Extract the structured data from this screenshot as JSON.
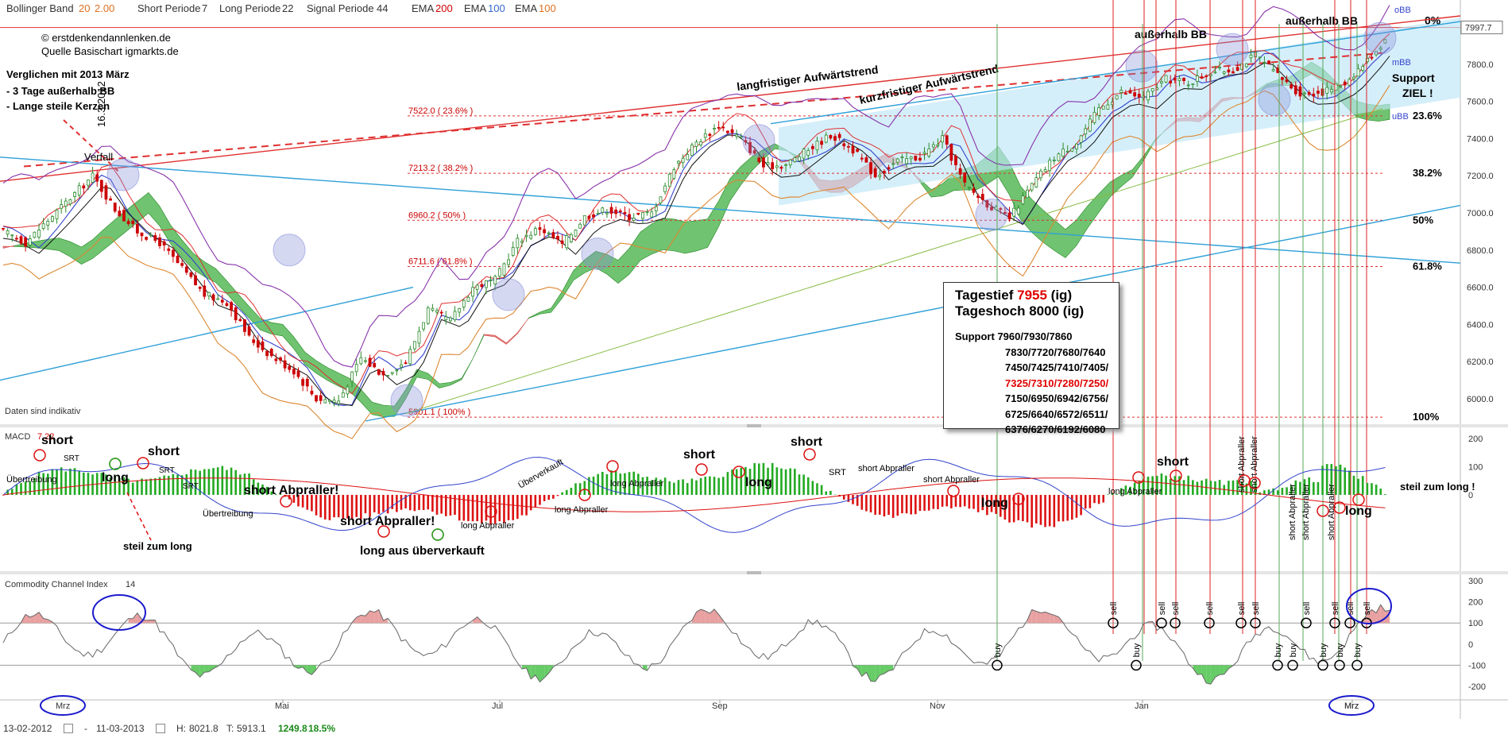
{
  "header": {
    "bb_label": "Bollinger Band",
    "bb_p1": "20",
    "bb_p2": "2.00",
    "short_label": "Short Periode",
    "short_val": "7",
    "long_label": "Long Periode",
    "long_val": "22",
    "signal_label": "Signal Periode",
    "signal_val": "44",
    "ema1_label": "EMA",
    "ema1_val": "200",
    "ema2_label": "EMA",
    "ema2_val": "100",
    "ema3_label": "EMA",
    "ema3_val": "100"
  },
  "copyright": [
    "© erstdenkendannlenken.de",
    "Quelle Basischart igmarkts.de"
  ],
  "notes": [
    "Verglichen mit 2013 März",
    "- 3 Tage außerhalb BB",
    "- Lange steile Kerzen"
  ],
  "vertical_date": "16.3.2012",
  "verfall": "Verfall",
  "daten": "Daten sind indikativ",
  "colors": {
    "up": "#2a8a2a",
    "down": "#cc0000",
    "accent": "#e01010",
    "blue": "#3b5bdb",
    "cloud_green": "#33aa33",
    "cloud_red": "#ee5555"
  },
  "info_box": {
    "tagestief_label": "Tagestief",
    "tagestief_val": "7955",
    "tagestief_suffix": "(ig)",
    "tageshoch": "Tageshoch 8000 (ig)",
    "support_label": "Support",
    "support_lines": [
      "7960/7930/7860",
      "7830/7720/7680/7640",
      "7450/7425/7410/7405/",
      "7325/7310/7280/7250/",
      "7150/6950/6942/6756/",
      "6725/6640/6572/6511/",
      "6376/6270/6192/6080"
    ]
  },
  "footer": {
    "from": "13-02-2012",
    "to": "11-03-2013",
    "h_label": "H:",
    "h_val": "8021.8",
    "t_label": "T:",
    "t_val": "5913.1",
    "diff": "1249.8",
    "pct": "18.5%"
  },
  "chart_data": [
    {
      "type": "candlestick",
      "title": "",
      "x_ticks": [
        "Mai",
        "Jul",
        "Sep",
        "Nov",
        "Jan",
        "Mrz"
      ],
      "y_ticks": [
        6000,
        6200,
        6400,
        6600,
        6800,
        7000,
        7200,
        7400,
        7600,
        7800,
        7997.7
      ],
      "ylim": [
        5880,
        8060
      ],
      "last_price": "7997.7",
      "fib_levels": [
        {
          "label": "7522.0 ( 23.6% )",
          "value": 7522.0,
          "right_label": "23.6%"
        },
        {
          "label": "7213.2 ( 38.2% )",
          "value": 7213.2,
          "right_label": "38.2%"
        },
        {
          "label": "6960.2 ( 50% )",
          "value": 6960.2,
          "right_label": "50%"
        },
        {
          "label": "6711.6 ( 61.8% )",
          "value": 6711.6,
          "right_label": "61.8%"
        },
        {
          "label": "5901.1 ( 100% )",
          "value": 5901.1,
          "right_label": "100%"
        }
      ],
      "top_pct": "0%",
      "annotations": {
        "long_trend": "langfristiger Aufwärtstrend",
        "short_trend": "kurzfristiger Aufwärtstrend",
        "ausserhalb1": "außerhalb BB",
        "ausserhalb2": "außerhalb BB",
        "support": "Support",
        "ziel": "ZIEL !",
        "obb": "oBB",
        "mbb": "mBB",
        "ubb": "uBB"
      },
      "close_path": [
        [
          0,
          6900
        ],
        [
          10,
          6840
        ],
        [
          20,
          6960
        ],
        [
          30,
          7080
        ],
        [
          40,
          7200
        ],
        [
          50,
          7020
        ],
        [
          60,
          6900
        ],
        [
          70,
          6840
        ],
        [
          80,
          6700
        ],
        [
          90,
          6560
        ],
        [
          100,
          6520
        ],
        [
          110,
          6330
        ],
        [
          120,
          6230
        ],
        [
          130,
          6150
        ],
        [
          140,
          6000
        ],
        [
          150,
          5990
        ],
        [
          160,
          6220
        ],
        [
          170,
          6130
        ],
        [
          180,
          6200
        ],
        [
          190,
          6480
        ],
        [
          200,
          6420
        ],
        [
          210,
          6600
        ],
        [
          220,
          6640
        ],
        [
          230,
          6850
        ],
        [
          240,
          6920
        ],
        [
          250,
          6830
        ],
        [
          260,
          6980
        ],
        [
          270,
          7020
        ],
        [
          280,
          6980
        ],
        [
          290,
          7000
        ],
        [
          300,
          7250
        ],
        [
          310,
          7380
        ],
        [
          320,
          7470
        ],
        [
          330,
          7400
        ],
        [
          340,
          7250
        ],
        [
          350,
          7260
        ],
        [
          360,
          7340
        ],
        [
          370,
          7420
        ],
        [
          380,
          7340
        ],
        [
          390,
          7200
        ],
        [
          400,
          7280
        ],
        [
          410,
          7300
        ],
        [
          420,
          7400
        ],
        [
          430,
          7150
        ],
        [
          440,
          7050
        ],
        [
          450,
          6970
        ],
        [
          460,
          7150
        ],
        [
          470,
          7300
        ],
        [
          480,
          7380
        ],
        [
          490,
          7560
        ],
        [
          500,
          7650
        ],
        [
          510,
          7620
        ],
        [
          520,
          7720
        ],
        [
          530,
          7700
        ],
        [
          540,
          7760
        ],
        [
          550,
          7770
        ],
        [
          560,
          7850
        ],
        [
          570,
          7740
        ],
        [
          580,
          7640
        ],
        [
          590,
          7650
        ],
        [
          600,
          7700
        ],
        [
          610,
          7820
        ],
        [
          620,
          7960
        ]
      ]
    },
    {
      "type": "bar",
      "title": "MACD",
      "params": "7 22",
      "y_ticks": [
        200,
        100,
        0
      ],
      "ylim": [
        -260,
        240
      ],
      "labels": [
        "short",
        "long",
        "short",
        "SRT",
        "SRT",
        "SRT",
        "Übertreibung",
        "Übertreibung",
        "steil zum long",
        "short Abpraller!",
        "short Abpraller!",
        "long aus überverkauft",
        "long Abpraller",
        "Überverkauft",
        "long Abpraller",
        "long Abpraller",
        "short",
        "long",
        "short",
        "SRT",
        "short Abpraller",
        "short Abpraller",
        "long",
        "long Abpraller",
        "short",
        "short Abpraller",
        "short Abpraller",
        "short Abpraller",
        "short Abpraller",
        "short Abpraller",
        "long",
        "steil zum long !"
      ]
    },
    {
      "type": "line",
      "title": "Commodity Channel Index",
      "params": "14",
      "y_ticks": [
        300,
        200,
        100,
        0,
        -100,
        -200
      ],
      "ylim": [
        -260,
        330
      ],
      "signals": [
        "buy",
        "sell",
        "buy",
        "sell",
        "sell",
        "sell",
        "sell",
        "sell",
        "buy",
        "buy",
        "sell",
        "buy",
        "sell",
        "buy",
        "sell",
        "buy",
        "sell"
      ],
      "month_marks": [
        "Mrz",
        "Mrz"
      ]
    }
  ]
}
